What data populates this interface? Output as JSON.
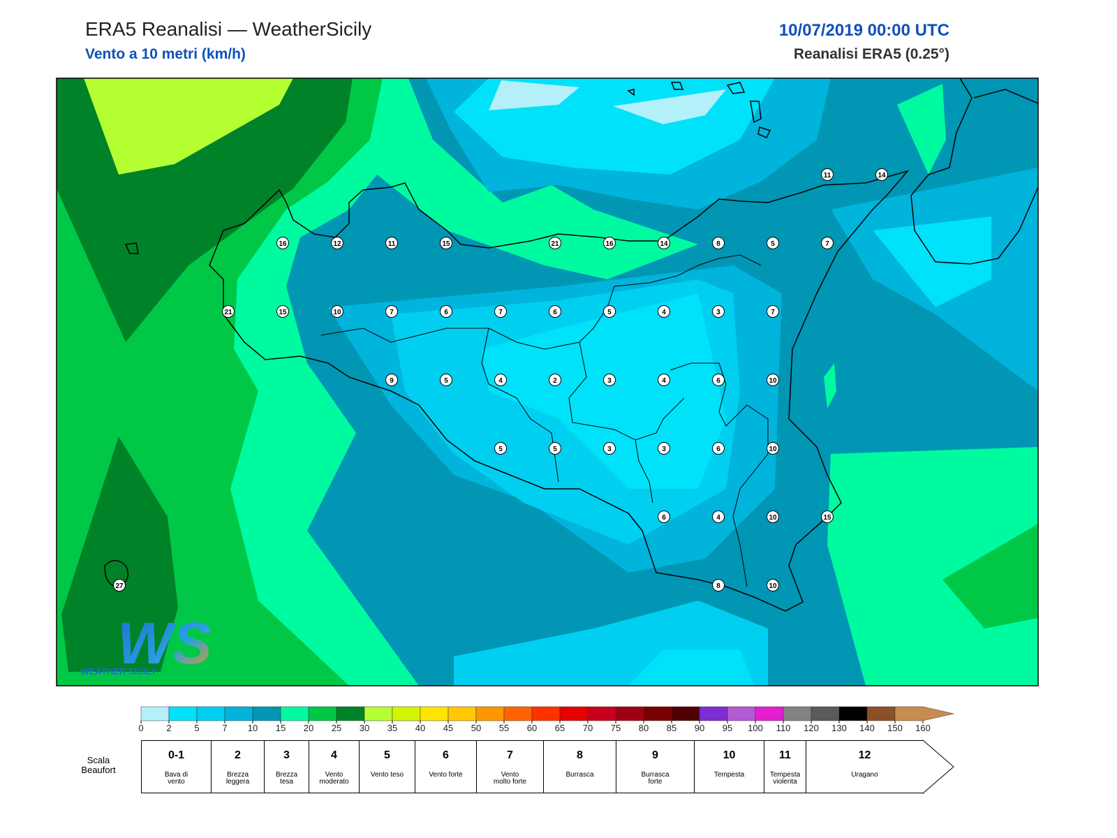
{
  "header": {
    "title": "ERA5 Reanalisi — WeatherSicily",
    "subtitle": "Vento a 10 metri (km/h)",
    "datetime": "10/07/2019 00:00 UTC",
    "source": "Reanalisi ERA5 (0.25°)"
  },
  "map": {
    "grid_values": [
      [
        null,
        null,
        null,
        null,
        null,
        null,
        null,
        null,
        null,
        null,
        null,
        null,
        null,
        11,
        14
      ],
      [
        null,
        null,
        null,
        16,
        12,
        11,
        15,
        null,
        21,
        16,
        14,
        8,
        5,
        7,
        null
      ],
      [
        null,
        null,
        21,
        15,
        10,
        7,
        6,
        7,
        6,
        5,
        4,
        3,
        7,
        null,
        null
      ],
      [
        null,
        null,
        null,
        null,
        null,
        9,
        5,
        4,
        2,
        3,
        4,
        6,
        10,
        null,
        null
      ],
      [
        null,
        null,
        null,
        null,
        null,
        null,
        null,
        5,
        5,
        3,
        3,
        6,
        10,
        null,
        null
      ],
      [
        null,
        null,
        null,
        null,
        null,
        null,
        null,
        null,
        null,
        null,
        6,
        4,
        10,
        15,
        null
      ],
      [
        27,
        null,
        null,
        null,
        null,
        null,
        null,
        null,
        null,
        null,
        null,
        8,
        10,
        null,
        null
      ]
    ]
  },
  "logo": {
    "mark": "WS",
    "name": "WEATHER SICILY"
  },
  "colorbar": {
    "ticks": [
      0,
      2,
      5,
      7,
      10,
      15,
      20,
      25,
      30,
      35,
      40,
      45,
      50,
      55,
      60,
      65,
      70,
      75,
      80,
      85,
      90,
      95,
      100,
      110,
      120,
      130,
      140,
      150,
      160
    ],
    "colors": [
      "#b3f0fa",
      "#00e1fa",
      "#00cff0",
      "#00b4dc",
      "#0096b4",
      "#00faa0",
      "#00c846",
      "#008228",
      "#b4ff32",
      "#d2f500",
      "#ffe600",
      "#ffc800",
      "#ff9600",
      "#ff6400",
      "#ff3200",
      "#e60000",
      "#c8001e",
      "#a00014",
      "#780000",
      "#500000",
      "#7d2dd2",
      "#b45ad2",
      "#e61ed2",
      "#828282",
      "#5a5a5a",
      "#000000",
      "#8c5028",
      "#c88c50"
    ]
  },
  "beaufort": {
    "label": "Scala Beaufort",
    "levels": [
      {
        "force": "0-1",
        "name": "Bava di vento"
      },
      {
        "force": "2",
        "name": "Brezza leggera"
      },
      {
        "force": "3",
        "name": "Brezza tesa"
      },
      {
        "force": "4",
        "name": "Vento moderato"
      },
      {
        "force": "5",
        "name": "Vento teso"
      },
      {
        "force": "6",
        "name": "Vento forte"
      },
      {
        "force": "7",
        "name": "Vento molto forte"
      },
      {
        "force": "8",
        "name": "Burrasca"
      },
      {
        "force": "9",
        "name": "Burrasca forte"
      },
      {
        "force": "10",
        "name": "Tempesta"
      },
      {
        "force": "11",
        "name": "Tempesta violenta"
      },
      {
        "force": "12",
        "name": "Uragano"
      }
    ]
  }
}
